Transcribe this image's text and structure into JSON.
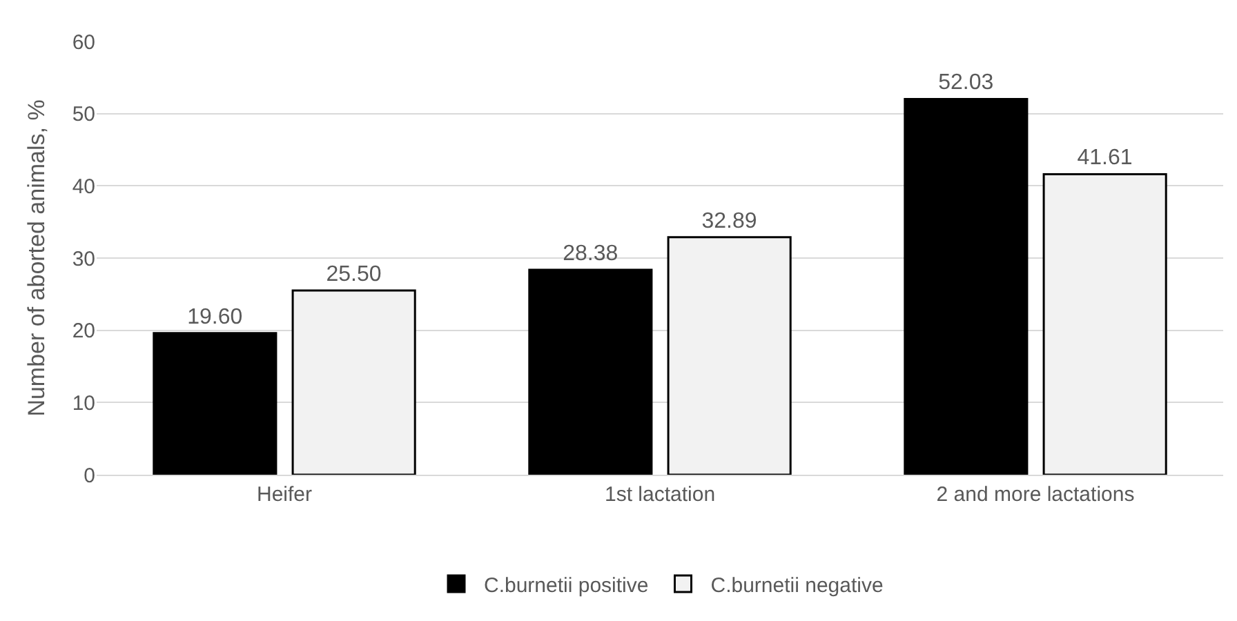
{
  "chart_data": {
    "type": "bar",
    "ylabel": "Number of aborted animals, %",
    "categories": [
      "Heifer",
      "1st lactation",
      "2 and more lactations"
    ],
    "series": [
      {
        "name": "C.burnetii positive",
        "color": "#000000",
        "values": [
          19.6,
          28.38,
          52.03
        ],
        "value_labels": [
          "19.60",
          "28.38",
          "52.03"
        ]
      },
      {
        "name": "C.burnetii negative",
        "color": "#f2f2f2",
        "values": [
          25.5,
          32.89,
          41.61
        ],
        "value_labels": [
          "25.50",
          "32.89",
          "41.61"
        ]
      }
    ],
    "ylim": [
      0,
      60
    ],
    "yticks": [
      0,
      10,
      20,
      30,
      40,
      50,
      60
    ],
    "grid": "y",
    "legend": "bottom"
  }
}
